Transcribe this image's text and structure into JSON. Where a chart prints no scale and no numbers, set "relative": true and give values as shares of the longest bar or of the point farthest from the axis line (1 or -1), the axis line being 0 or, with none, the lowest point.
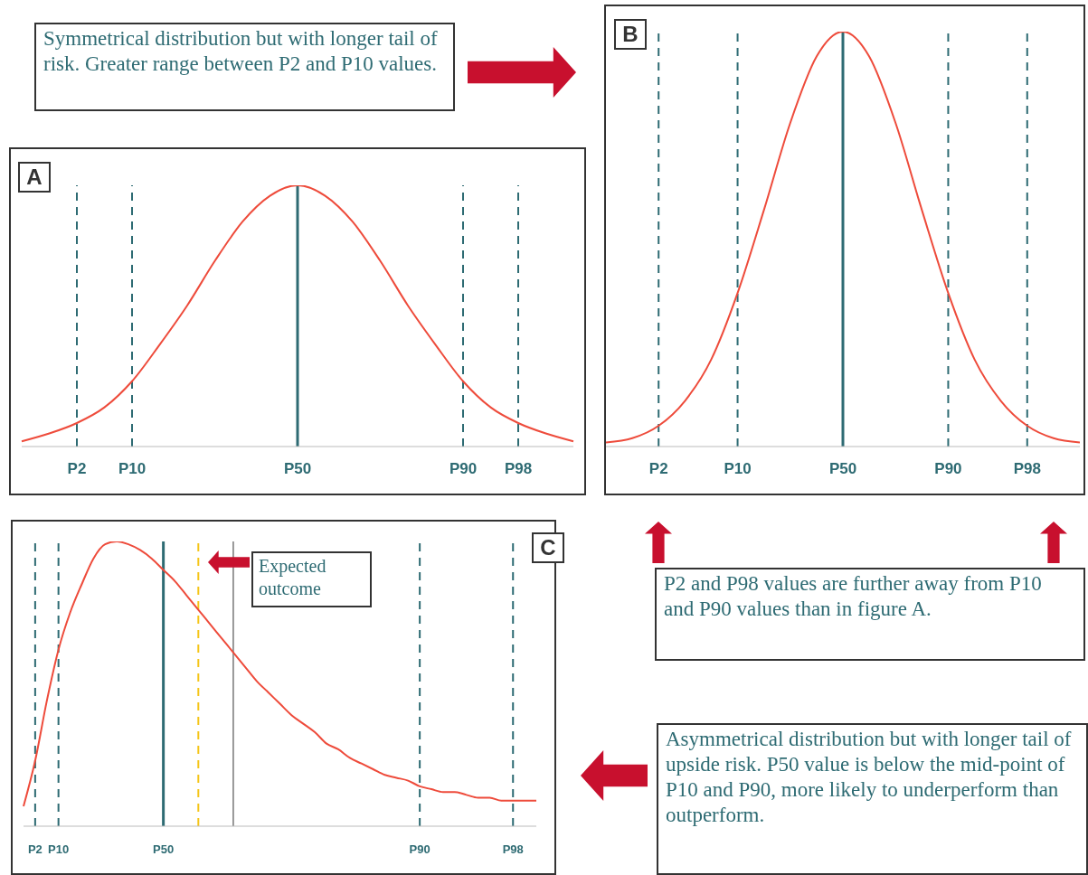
{
  "chart_data": [
    {
      "type": "line",
      "title": "A",
      "relative": true,
      "marker": "none",
      "categories": [
        null,
        null,
        "P2",
        null,
        "P10",
        null,
        null,
        null,
        null,
        null,
        "P50",
        null,
        null,
        null,
        null,
        null,
        "P90",
        null,
        "P98",
        null,
        null
      ],
      "series": [
        {
          "color": "#ee4b3b",
          "values": [
            0.02,
            0.05,
            0.09,
            0.15,
            0.25,
            0.39,
            0.54,
            0.71,
            0.86,
            0.96,
            1,
            0.96,
            0.86,
            0.71,
            0.54,
            0.39,
            0.25,
            0.15,
            0.09,
            0.05,
            0.02
          ]
        }
      ],
      "ref_lines": [
        {
          "axis": "x",
          "value": "P2",
          "color": "#2e6b73",
          "line_style": "dashed"
        },
        {
          "axis": "x",
          "value": "P10",
          "color": "#2e6b73",
          "line_style": "dashed"
        },
        {
          "axis": "x",
          "value": "P50",
          "color": "#2e6b73",
          "line_style": "solid"
        },
        {
          "axis": "x",
          "value": "P90",
          "color": "#2e6b73",
          "line_style": "dashed"
        },
        {
          "axis": "x",
          "value": "P98",
          "color": "#2e6b73",
          "line_style": "dashed"
        }
      ]
    },
    {
      "type": "line",
      "title": "B",
      "relative": true,
      "marker": "none",
      "categories": [
        null,
        null,
        "P2",
        null,
        null,
        "P10",
        null,
        null,
        null,
        "P50",
        null,
        null,
        null,
        "P90",
        null,
        null,
        "P98",
        null,
        null
      ],
      "series": [
        {
          "color": "#ee4b3b",
          "values": [
            0.01,
            0.02,
            0.05,
            0.11,
            0.21,
            0.37,
            0.57,
            0.78,
            0.94,
            1,
            0.94,
            0.78,
            0.57,
            0.37,
            0.21,
            0.11,
            0.05,
            0.02,
            0.01
          ]
        }
      ],
      "ref_lines": [
        {
          "axis": "x",
          "value": "P2",
          "color": "#2e6b73",
          "line_style": "dashed"
        },
        {
          "axis": "x",
          "value": "P10",
          "color": "#2e6b73",
          "line_style": "dashed"
        },
        {
          "axis": "x",
          "value": "P50",
          "color": "#2e6b73",
          "line_style": "solid"
        },
        {
          "axis": "x",
          "value": "P90",
          "color": "#2e6b73",
          "line_style": "dashed"
        },
        {
          "axis": "x",
          "value": "P98",
          "color": "#2e6b73",
          "line_style": "dashed"
        }
      ],
      "annotations": [
        "Symmetrical distribution but with longer tail of risk.  Greater range between P2 and P10 values.",
        "P2 and P98 values are further away from P10 and P90 values than in figure A."
      ]
    },
    {
      "type": "line",
      "title": "C",
      "relative": true,
      "marker": "none",
      "categories": [
        null,
        "P2",
        null,
        "P10",
        null,
        null,
        null,
        null,
        null,
        null,
        null,
        null,
        "P50",
        null,
        null,
        null,
        null,
        null,
        null,
        null,
        null,
        null,
        null,
        null,
        null,
        null,
        null,
        null,
        null,
        null,
        null,
        null,
        null,
        null,
        "P90",
        null,
        null,
        null,
        null,
        null,
        null,
        null,
        "P98",
        null,
        null
      ],
      "series": [
        {
          "color": "#ee4b3b",
          "values": [
            0.07,
            0.23,
            0.44,
            0.62,
            0.75,
            0.85,
            0.94,
            0.99,
            1,
            0.99,
            0.97,
            0.94,
            0.9,
            0.86,
            0.81,
            0.76,
            0.71,
            0.66,
            0.61,
            0.56,
            0.51,
            0.47,
            0.43,
            0.39,
            0.36,
            0.33,
            0.29,
            0.27,
            0.24,
            0.22,
            0.2,
            0.18,
            0.17,
            0.16,
            0.14,
            0.13,
            0.12,
            0.12,
            0.11,
            0.1,
            0.1,
            0.09,
            0.09,
            0.09,
            0.09
          ]
        }
      ],
      "ref_lines": [
        {
          "axis": "x",
          "value": "P2",
          "color": "#2e6b73",
          "line_style": "dashed"
        },
        {
          "axis": "x",
          "value": "P10",
          "color": "#2e6b73",
          "line_style": "dashed"
        },
        {
          "axis": "x",
          "value": "P50",
          "color": "#2e6b73",
          "line_style": "solid"
        },
        {
          "axis": "x",
          "value": "P90",
          "color": "#2e6b73",
          "line_style": "dashed"
        },
        {
          "axis": "x",
          "value": "P98",
          "color": "#2e6b73",
          "line_style": "dashed"
        }
      ],
      "annotations": [
        "Expected outcome",
        "Asymmetrical distribution but with longer tail of upside risk. P50 value is below the mid-point of P10 and P90, more likely to underperform than outperform."
      ]
    }
  ]
}
